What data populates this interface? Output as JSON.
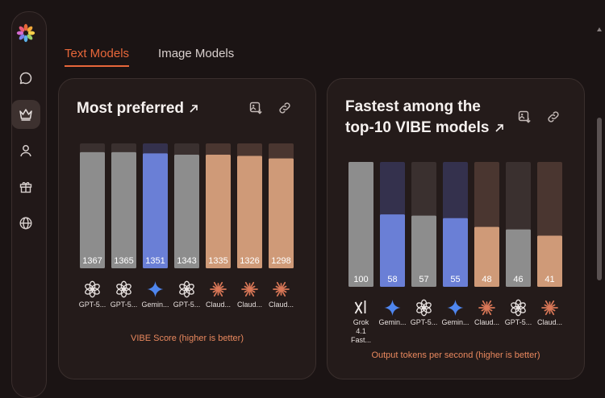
{
  "tabs": [
    {
      "label": "Text Models",
      "active": true
    },
    {
      "label": "Image Models",
      "active": false
    }
  ],
  "colors": {
    "gray": "#8d8d8d",
    "blue": "#6a7fd6",
    "peach": "#cf9a78",
    "accent": "#e8673a"
  },
  "chart_data": [
    {
      "type": "bar",
      "title_lines": [
        "Most preferred"
      ],
      "caption": "VIBE Score (higher is better)",
      "categories": [
        "GPT-5...",
        "GPT-5...",
        "Gemin...",
        "GPT-5...",
        "Claud...",
        "Claud...",
        "Claud..."
      ],
      "icons": [
        "openai-icon",
        "openai-icon",
        "gemini-icon",
        "openai-icon",
        "claude-icon",
        "claude-icon",
        "claude-icon"
      ],
      "values": [
        1367,
        1365,
        1351,
        1343,
        1335,
        1326,
        1298
      ],
      "fill": [
        0.93,
        0.93,
        0.92,
        0.91,
        0.91,
        0.9,
        0.88
      ],
      "colors": [
        "gray",
        "gray",
        "blue",
        "gray",
        "peach",
        "peach",
        "peach"
      ]
    },
    {
      "type": "bar",
      "title_lines": [
        "Fastest among the",
        "top-10 VIBE models"
      ],
      "caption": "Output tokens per second (higher is better)",
      "categories": [
        "Grok 4.1 Fast...",
        "Gemin...",
        "GPT-5...",
        "Gemin...",
        "Claud...",
        "GPT-5...",
        "Claud..."
      ],
      "icons": [
        "grok-icon",
        "gemini-icon",
        "openai-icon",
        "gemini-icon",
        "claude-icon",
        "openai-icon",
        "claude-icon"
      ],
      "values": [
        100,
        58,
        57,
        55,
        48,
        46,
        41
      ],
      "colors": [
        "gray",
        "blue",
        "gray",
        "blue",
        "peach",
        "gray",
        "peach"
      ],
      "ylim": [
        0,
        100
      ]
    }
  ]
}
